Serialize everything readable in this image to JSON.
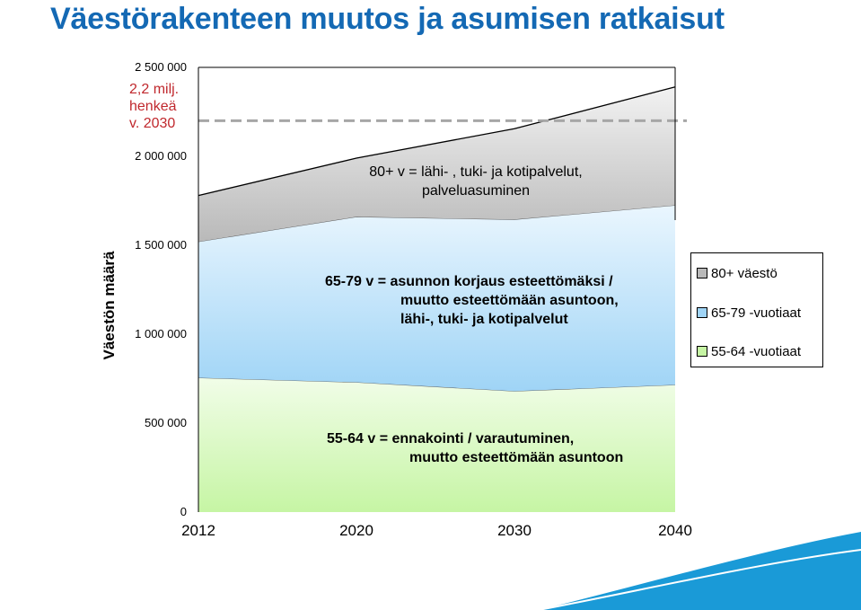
{
  "title": "Väestörakenteen muutos ja asumisen ratkaisut",
  "note": [
    "2,2 milj.",
    "henkeä",
    "v. 2030"
  ],
  "annotations": {
    "top": [
      "80+  v = lähi- , tuki- ja kotipalvelut,",
      "palveluasuminen"
    ],
    "middle": [
      "65-79 v = asunnon korjaus esteettömäksi /",
      "muutto esteettömään asuntoon,",
      "lähi-, tuki- ja kotipalvelut"
    ],
    "bottom": [
      "55-64 v =  ennakointi / varautuminen,",
      "muutto esteettömään asuntoon"
    ]
  },
  "colors": {
    "series_55_64": "#c6f5a4",
    "series_65_79": "#9fd4f6",
    "series_80": "#b9b9b9",
    "reference_line": "#a6a6a6",
    "title": "#1469b4",
    "note": "#c0282d",
    "decoration": "#1a9ad7"
  },
  "chart_data": {
    "type": "area",
    "stacked": true,
    "x": [
      2012,
      2020,
      2030,
      2040
    ],
    "xticks": [
      "2012",
      "2020",
      "2030",
      "2040"
    ],
    "ylabel": "Väestön määrä",
    "yticks": [
      "0",
      "500 000",
      "1 000 000",
      "1 500 000",
      "2 000 000",
      "2 500 000"
    ],
    "ylim": [
      0,
      2500000
    ],
    "series": [
      {
        "name": "55-64 -vuotiaat",
        "values": [
          755000,
          730000,
          680000,
          715000
        ]
      },
      {
        "name": "65-79 -vuotiaat",
        "values": [
          765000,
          930000,
          965000,
          1010000
        ]
      },
      {
        "name": "80+ väestö",
        "values": [
          260000,
          330000,
          510000,
          665000
        ]
      }
    ],
    "reference_line": {
      "value": 2200000
    },
    "legend_position": "right",
    "grid": false
  }
}
